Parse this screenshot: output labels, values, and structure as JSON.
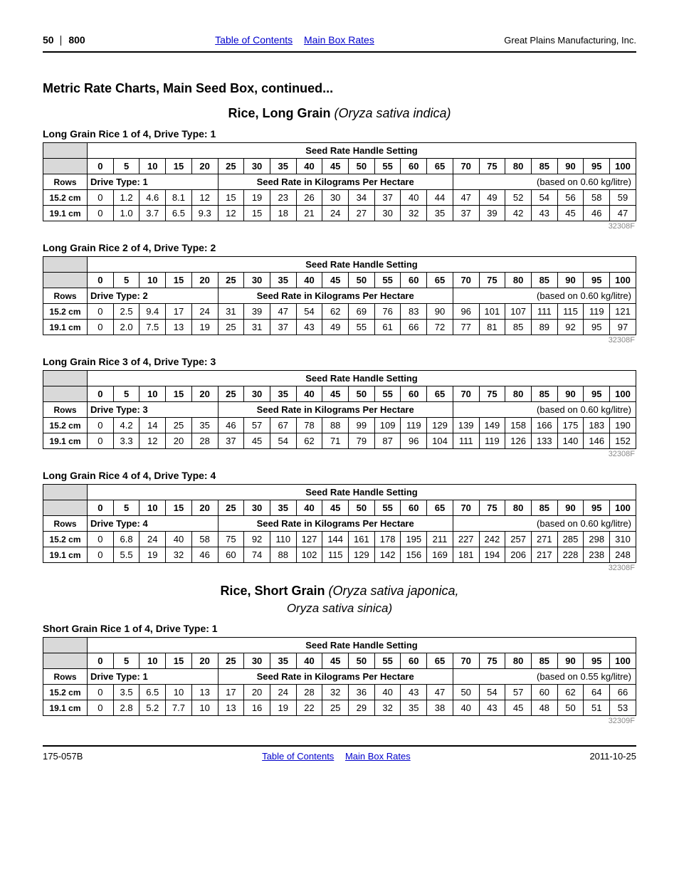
{
  "header": {
    "pageNum": "50",
    "model": "800",
    "tocLink": "Table of Contents",
    "ratesLink": "Main Box Rates",
    "company": "Great Plains Manufacturing, Inc."
  },
  "sectionTitle": "Metric Rate Charts, Main Seed Box, continued...",
  "settingHeader": "Seed Rate Handle Setting",
  "settings": [
    "0",
    "5",
    "10",
    "15",
    "20",
    "25",
    "30",
    "35",
    "40",
    "45",
    "50",
    "55",
    "60",
    "65",
    "70",
    "75",
    "80",
    "85",
    "90",
    "95",
    "100"
  ],
  "rowsLabel": "Rows",
  "rateLabel": "Seed Rate in Kilograms Per Hectare",
  "crops": [
    {
      "titleCommon": "Rice, Long Grain",
      "titleSci": "(Oryza sativa indica)",
      "tables": [
        {
          "caption": "Long Grain Rice 1 of 4, Drive Type: 1",
          "driveType": "Drive Type: 1",
          "basis": "(based on 0.60 kg/litre)",
          "note": "32308F",
          "rows": [
            {
              "label": "15.2 cm",
              "vals": [
                "0",
                "1.2",
                "4.6",
                "8.1",
                "12",
                "15",
                "19",
                "23",
                "26",
                "30",
                "34",
                "37",
                "40",
                "44",
                "47",
                "49",
                "52",
                "54",
                "56",
                "58",
                "59"
              ]
            },
            {
              "label": "19.1 cm",
              "vals": [
                "0",
                "1.0",
                "3.7",
                "6.5",
                "9.3",
                "12",
                "15",
                "18",
                "21",
                "24",
                "27",
                "30",
                "32",
                "35",
                "37",
                "39",
                "42",
                "43",
                "45",
                "46",
                "47"
              ]
            }
          ]
        },
        {
          "caption": "Long Grain Rice 2 of 4, Drive Type: 2",
          "driveType": "Drive Type: 2",
          "basis": "(based on 0.60 kg/litre)",
          "note": "32308F",
          "rows": [
            {
              "label": "15.2 cm",
              "vals": [
                "0",
                "2.5",
                "9.4",
                "17",
                "24",
                "31",
                "39",
                "47",
                "54",
                "62",
                "69",
                "76",
                "83",
                "90",
                "96",
                "101",
                "107",
                "111",
                "115",
                "119",
                "121"
              ]
            },
            {
              "label": "19.1 cm",
              "vals": [
                "0",
                "2.0",
                "7.5",
                "13",
                "19",
                "25",
                "31",
                "37",
                "43",
                "49",
                "55",
                "61",
                "66",
                "72",
                "77",
                "81",
                "85",
                "89",
                "92",
                "95",
                "97"
              ]
            }
          ]
        },
        {
          "caption": "Long Grain Rice 3 of 4, Drive Type: 3",
          "driveType": "Drive Type: 3",
          "basis": "(based on 0.60 kg/litre)",
          "note": "32308F",
          "rows": [
            {
              "label": "15.2 cm",
              "vals": [
                "0",
                "4.2",
                "14",
                "25",
                "35",
                "46",
                "57",
                "67",
                "78",
                "88",
                "99",
                "109",
                "119",
                "129",
                "139",
                "149",
                "158",
                "166",
                "175",
                "183",
                "190"
              ]
            },
            {
              "label": "19.1 cm",
              "vals": [
                "0",
                "3.3",
                "12",
                "20",
                "28",
                "37",
                "45",
                "54",
                "62",
                "71",
                "79",
                "87",
                "96",
                "104",
                "111",
                "119",
                "126",
                "133",
                "140",
                "146",
                "152"
              ]
            }
          ]
        },
        {
          "caption": "Long Grain Rice 4 of 4, Drive Type: 4",
          "driveType": "Drive Type: 4",
          "basis": "(based on 0.60 kg/litre)",
          "note": "32308F",
          "rows": [
            {
              "label": "15.2 cm",
              "vals": [
                "0",
                "6.8",
                "24",
                "40",
                "58",
                "75",
                "92",
                "110",
                "127",
                "144",
                "161",
                "178",
                "195",
                "211",
                "227",
                "242",
                "257",
                "271",
                "285",
                "298",
                "310"
              ]
            },
            {
              "label": "19.1 cm",
              "vals": [
                "0",
                "5.5",
                "19",
                "32",
                "46",
                "60",
                "74",
                "88",
                "102",
                "115",
                "129",
                "142",
                "156",
                "169",
                "181",
                "194",
                "206",
                "217",
                "228",
                "238",
                "248"
              ]
            }
          ]
        }
      ]
    },
    {
      "titleCommon": "Rice, Short Grain",
      "titleSci": "(Oryza sativa japonica,",
      "subSci": "Oryza sativa sinica)",
      "tables": [
        {
          "caption": "Short Grain Rice 1 of 4, Drive Type: 1",
          "driveType": "Drive Type: 1",
          "basis": "(based on 0.55 kg/litre)",
          "note": "32309F",
          "rows": [
            {
              "label": "15.2 cm",
              "vals": [
                "0",
                "3.5",
                "6.5",
                "10",
                "13",
                "17",
                "20",
                "24",
                "28",
                "32",
                "36",
                "40",
                "43",
                "47",
                "50",
                "54",
                "57",
                "60",
                "62",
                "64",
                "66"
              ]
            },
            {
              "label": "19.1 cm",
              "vals": [
                "0",
                "2.8",
                "5.2",
                "7.7",
                "10",
                "13",
                "16",
                "19",
                "22",
                "25",
                "29",
                "32",
                "35",
                "38",
                "40",
                "43",
                "45",
                "48",
                "50",
                "51",
                "53"
              ]
            }
          ]
        }
      ]
    }
  ],
  "footer": {
    "docnum": "175-057B",
    "tocLink": "Table of Contents",
    "ratesLink": "Main Box Rates",
    "date": "2011-10-25"
  }
}
